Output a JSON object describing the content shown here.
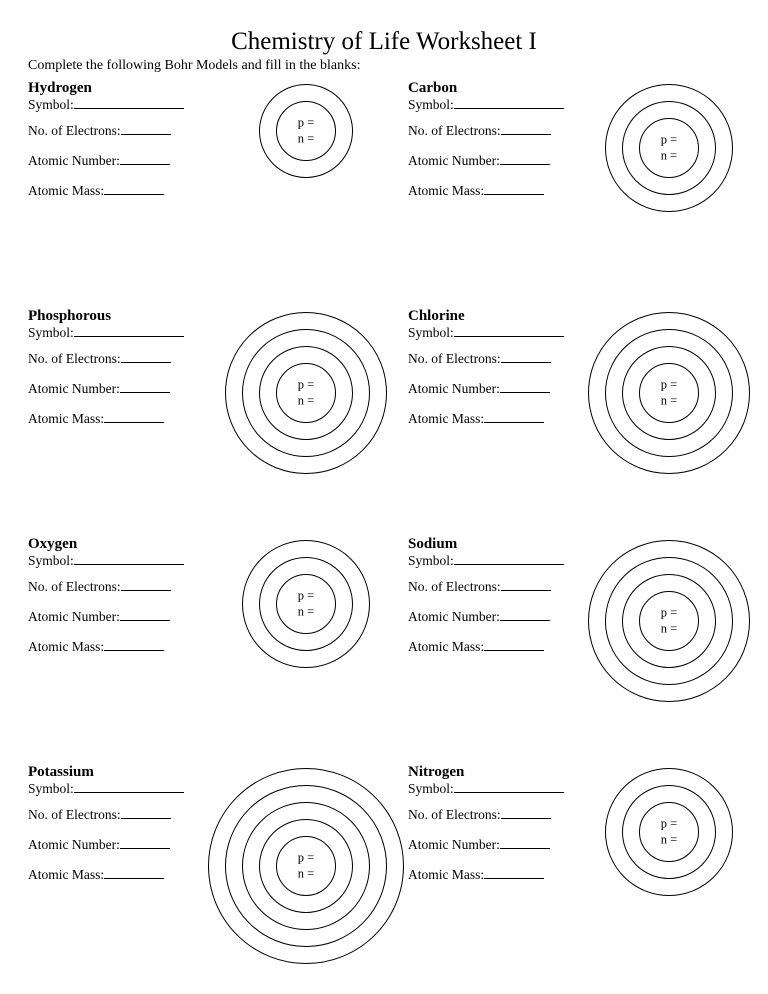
{
  "title": "Chemistry of Life Worksheet I",
  "instructions": "Complete the following Bohr Models and fill in the blanks:",
  "labels": {
    "symbol": "Symbol:",
    "electrons": "No. of Electrons:",
    "number": "Atomic Number:",
    "mass": "Atomic Mass:",
    "p": "p =",
    "n": "n ="
  },
  "blank_widths": {
    "symbol": 110,
    "electrons": 50,
    "number": 50,
    "mass": 60
  },
  "colors": {
    "background": "#ffffff",
    "text": "#000000",
    "ring_border": "#000000"
  },
  "elements": [
    {
      "name": "Hydrogen",
      "shells": 1
    },
    {
      "name": "Carbon",
      "shells": 2
    },
    {
      "name": "Phosphorous",
      "shells": 3
    },
    {
      "name": "Chlorine",
      "shells": 3
    },
    {
      "name": "Oxygen",
      "shells": 2
    },
    {
      "name": "Sodium",
      "shells": 3
    },
    {
      "name": "Potassium",
      "shells": 4
    },
    {
      "name": "Nitrogen",
      "shells": 2
    }
  ],
  "diagram": {
    "box_size": 164,
    "nucleus_diameter": 60,
    "shell_gap": 17
  }
}
